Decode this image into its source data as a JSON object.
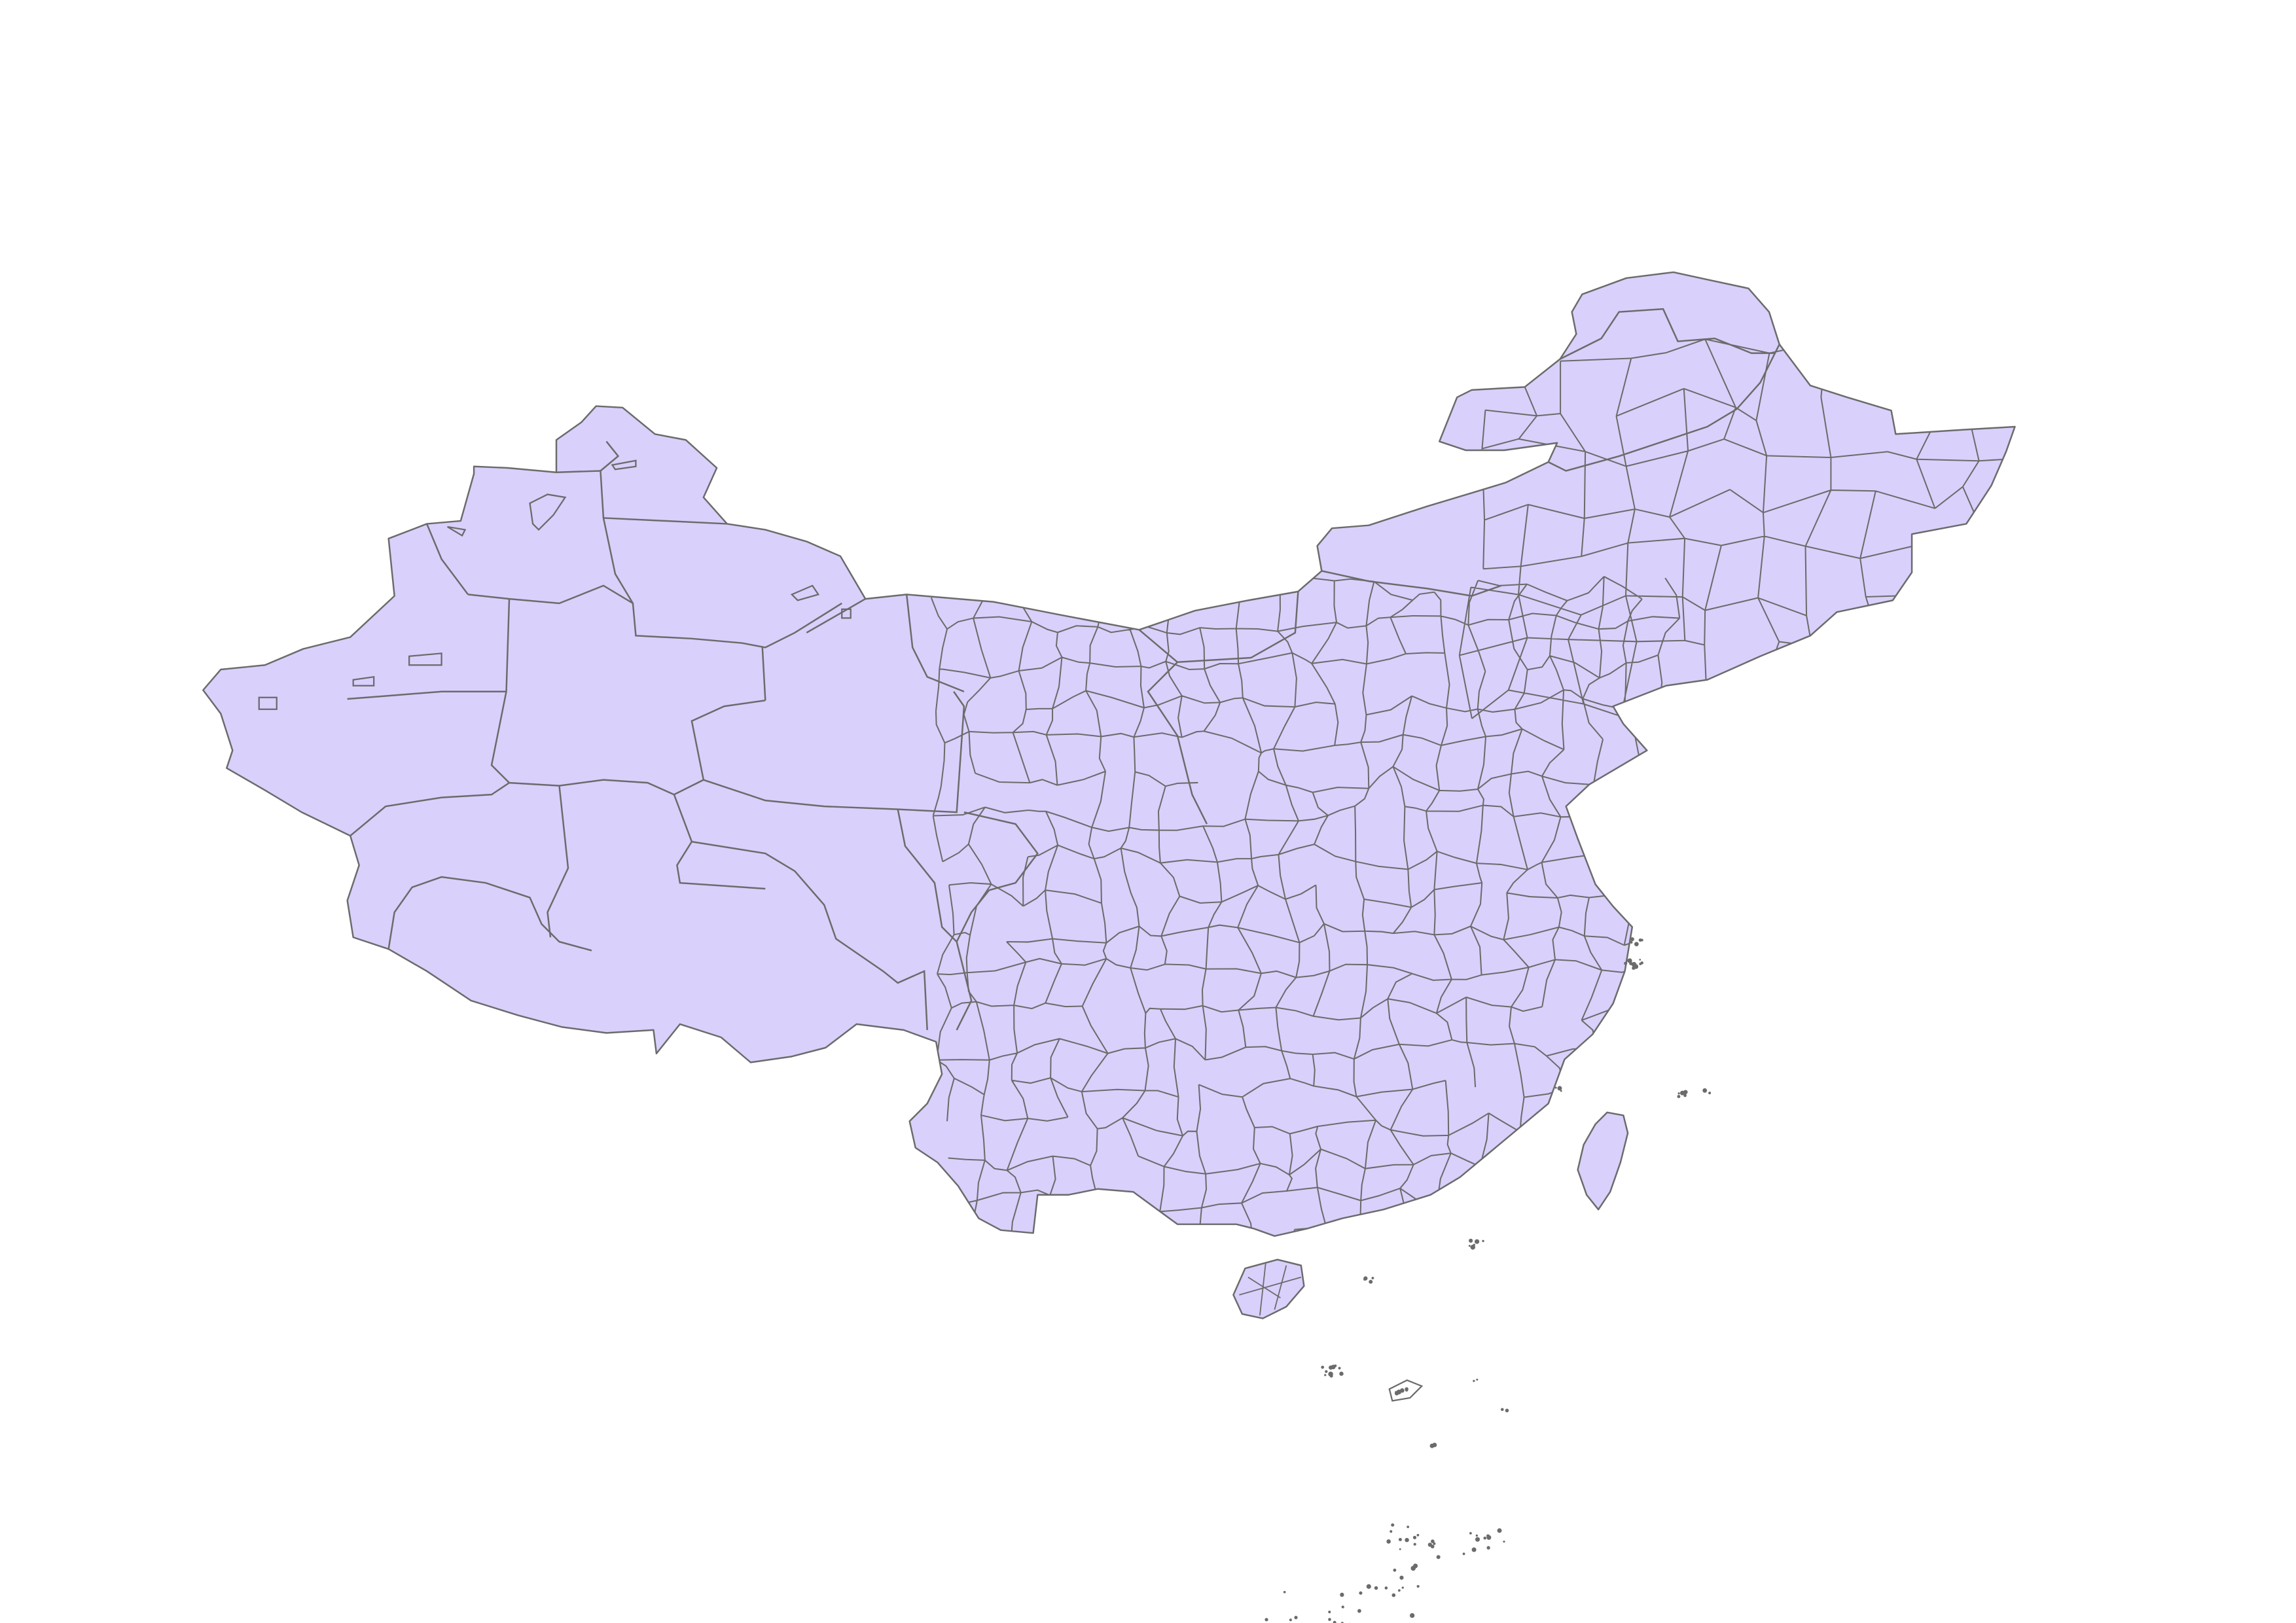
{
  "map": {
    "fill_color": "#d9d0fb",
    "border_color": "#6b6b6b",
    "background_color": "#ffffff"
  }
}
